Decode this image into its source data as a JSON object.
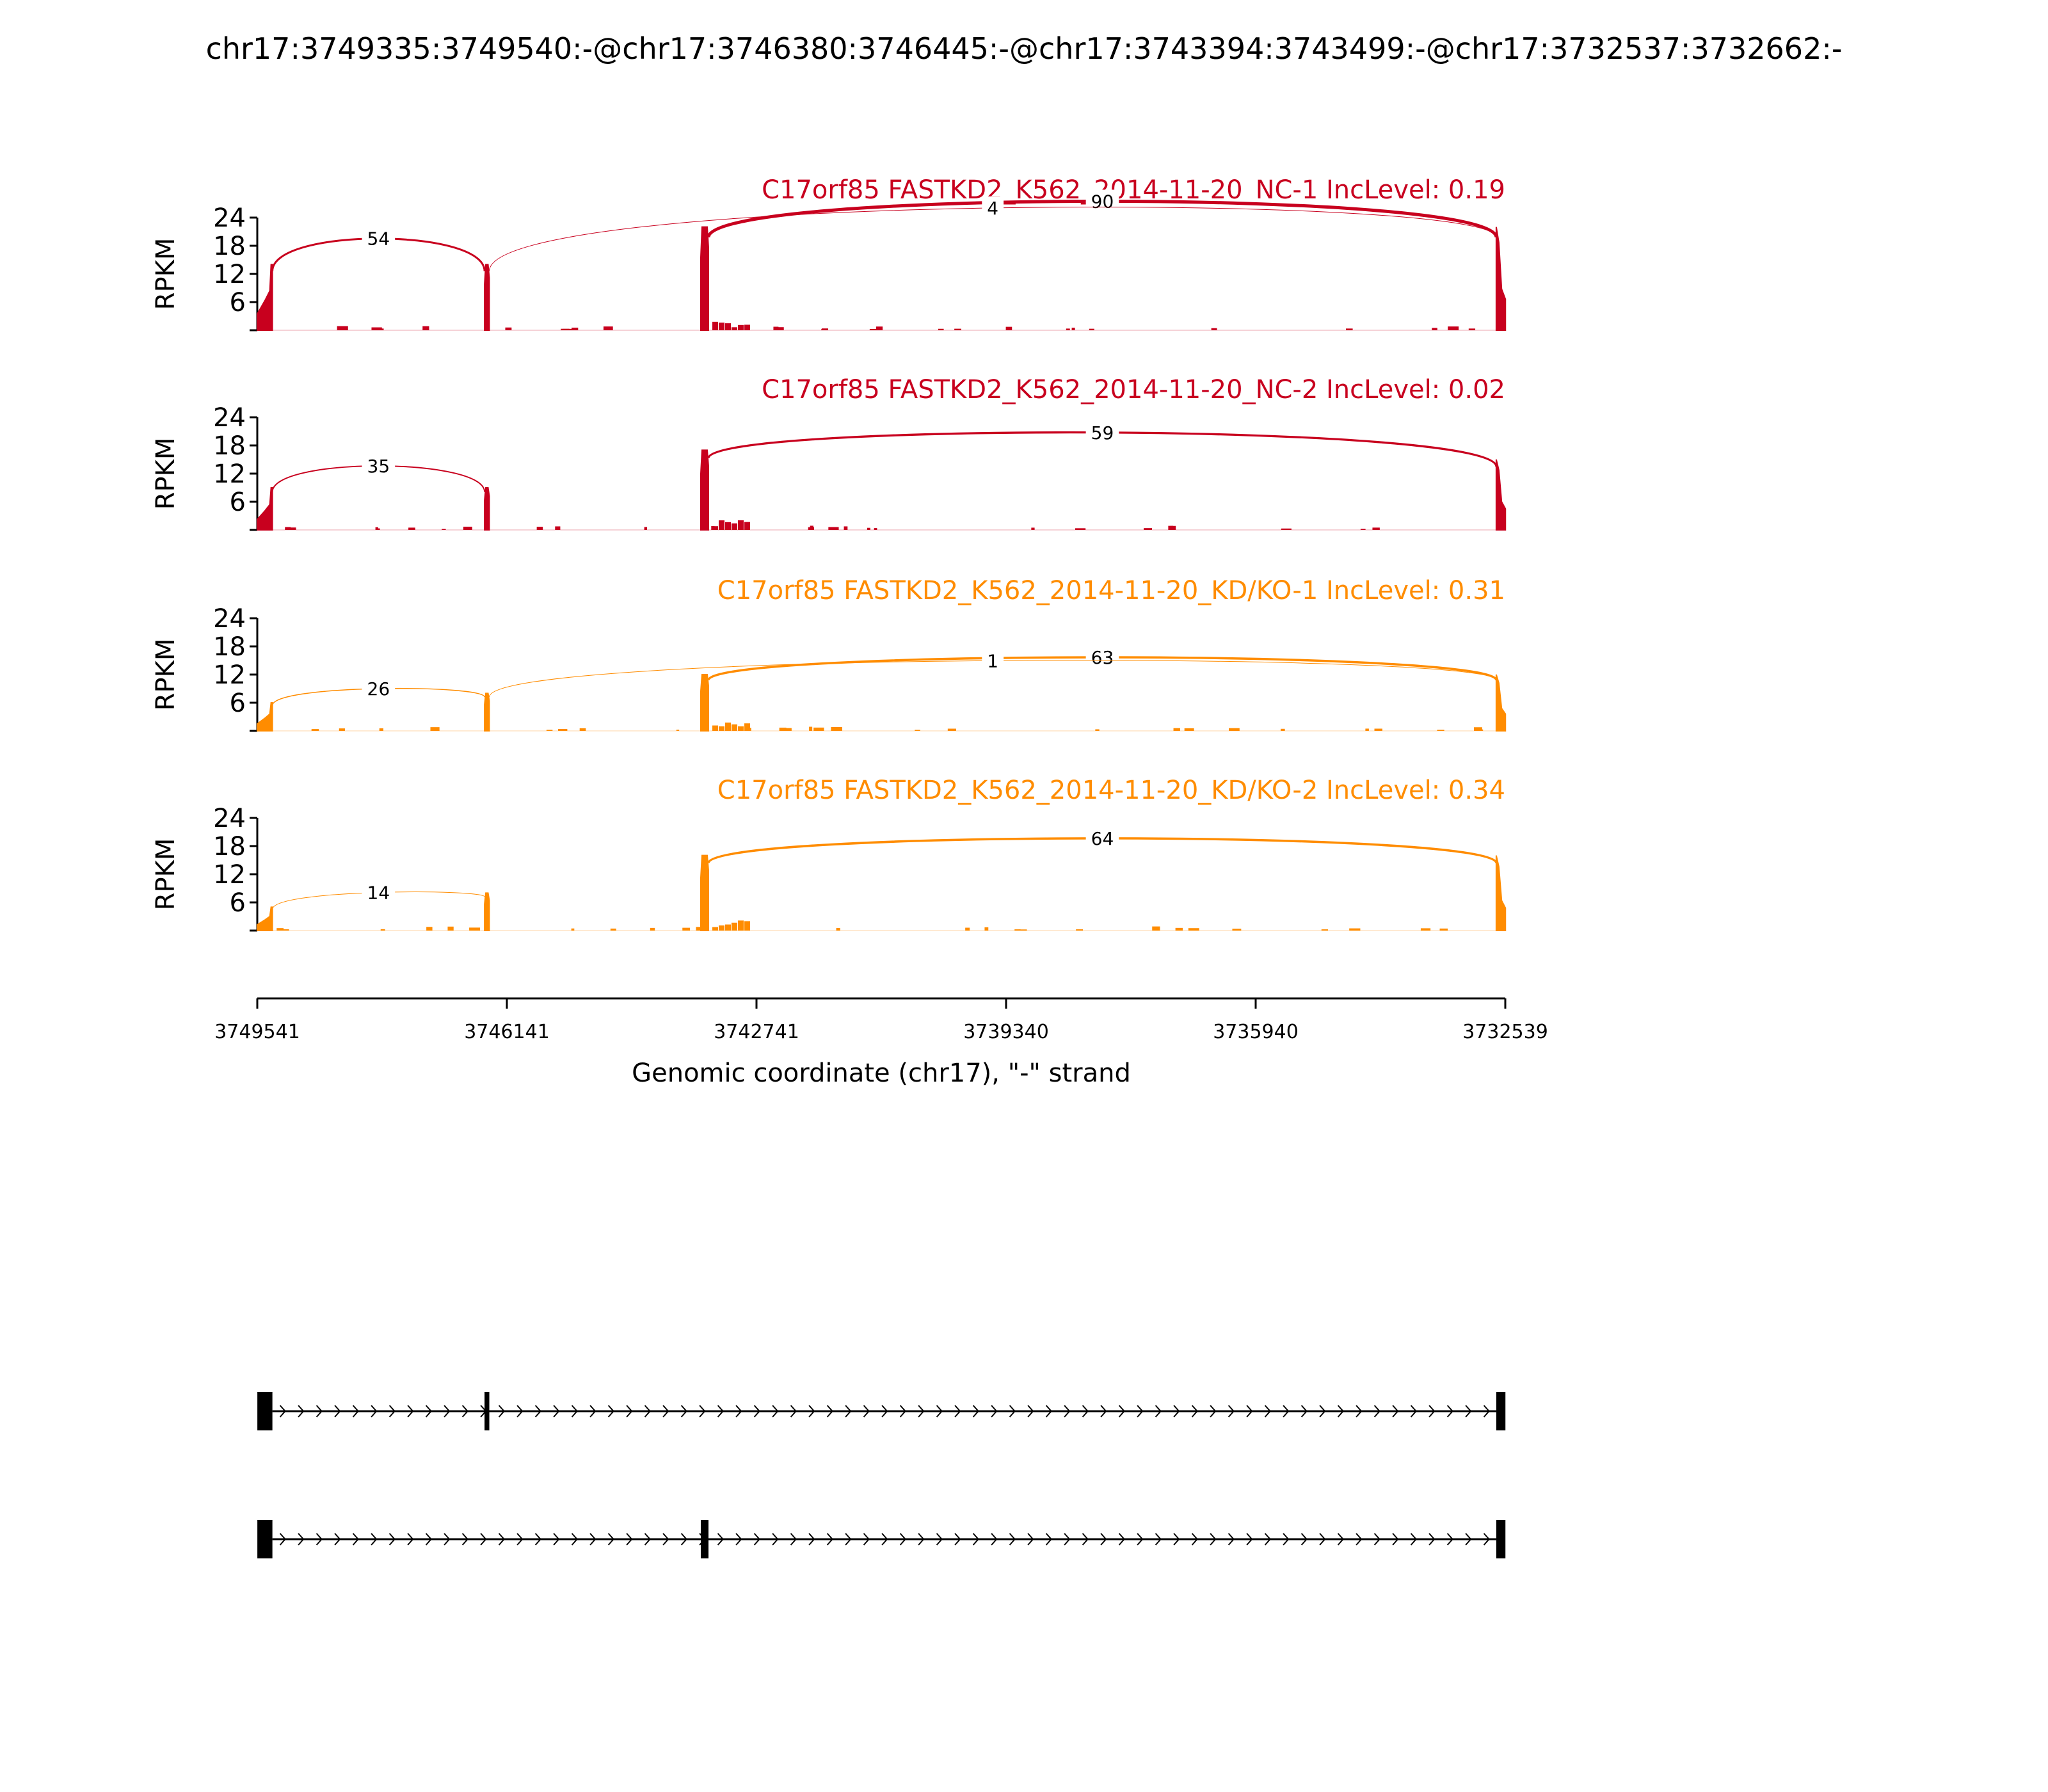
{
  "title": "chr17:3749335:3749540:-@chr17:3746380:3746445:-@chr17:3743394:3743499:-@chr17:3732537:3732662:-",
  "colors": {
    "nc": "#c8001e",
    "kd": "#ff8c00",
    "axis": "#000000"
  },
  "chart_data": {
    "type": "sashimi",
    "y_label": "RPKM",
    "y_ticks": [
      6,
      12,
      18,
      24
    ],
    "ylim": [
      0,
      24
    ],
    "x_label": "Genomic coordinate (chr17), \"-\" strand",
    "x_ticks": [
      "3749541",
      "3746141",
      "3742741",
      "3739340",
      "3735940",
      "3732539"
    ],
    "xlim": [
      3749541,
      3732539
    ],
    "exons": [
      {
        "start": 3749540,
        "end": 3749335
      },
      {
        "start": 3746445,
        "end": 3746380
      },
      {
        "start": 3743499,
        "end": 3743394
      },
      {
        "start": 3732662,
        "end": 3732537
      }
    ],
    "tracks": [
      {
        "name": "C17orf85 FASTKD2_K562_2014-11-20_NC-1 IncLevel: 0.19",
        "color_key": "nc",
        "exon_peaks": [
          14,
          14,
          22,
          22
        ],
        "junctions": [
          {
            "from": 3749335,
            "to": 3746445,
            "count": "54",
            "height": 20
          },
          {
            "from": 3743394,
            "to": 3732662,
            "count": "90",
            "height": 28
          },
          {
            "from": 3746380,
            "to": 3732662,
            "count": "4",
            "height": 26
          }
        ]
      },
      {
        "name": "C17orf85 FASTKD2_K562_2014-11-20_NC-2 IncLevel: 0.02",
        "color_key": "nc",
        "exon_peaks": [
          9,
          9,
          17,
          15
        ],
        "junctions": [
          {
            "from": 3749335,
            "to": 3746445,
            "count": "35",
            "height": 14
          },
          {
            "from": 3743394,
            "to": 3732662,
            "count": "59",
            "height": 21
          }
        ]
      },
      {
        "name": "C17orf85 FASTKD2_K562_2014-11-20_KD/KO-1 IncLevel: 0.31",
        "color_key": "kd",
        "exon_peaks": [
          6,
          8,
          12,
          12
        ],
        "junctions": [
          {
            "from": 3749335,
            "to": 3746445,
            "count": "26",
            "height": 9
          },
          {
            "from": 3743394,
            "to": 3732662,
            "count": "63",
            "height": 16
          },
          {
            "from": 3746380,
            "to": 3732662,
            "count": "1",
            "height": 15
          }
        ]
      },
      {
        "name": "C17orf85 FASTKD2_K562_2014-11-20_KD/KO-2 IncLevel: 0.34",
        "color_key": "kd",
        "exon_peaks": [
          5,
          8,
          16,
          16
        ],
        "junctions": [
          {
            "from": 3749335,
            "to": 3746445,
            "count": "14",
            "height": 8
          },
          {
            "from": 3743394,
            "to": 3732662,
            "count": "64",
            "height": 20
          }
        ]
      }
    ],
    "isoforms": [
      {
        "exons": [
          0,
          1,
          3
        ]
      },
      {
        "exons": [
          0,
          2,
          3
        ]
      }
    ]
  }
}
